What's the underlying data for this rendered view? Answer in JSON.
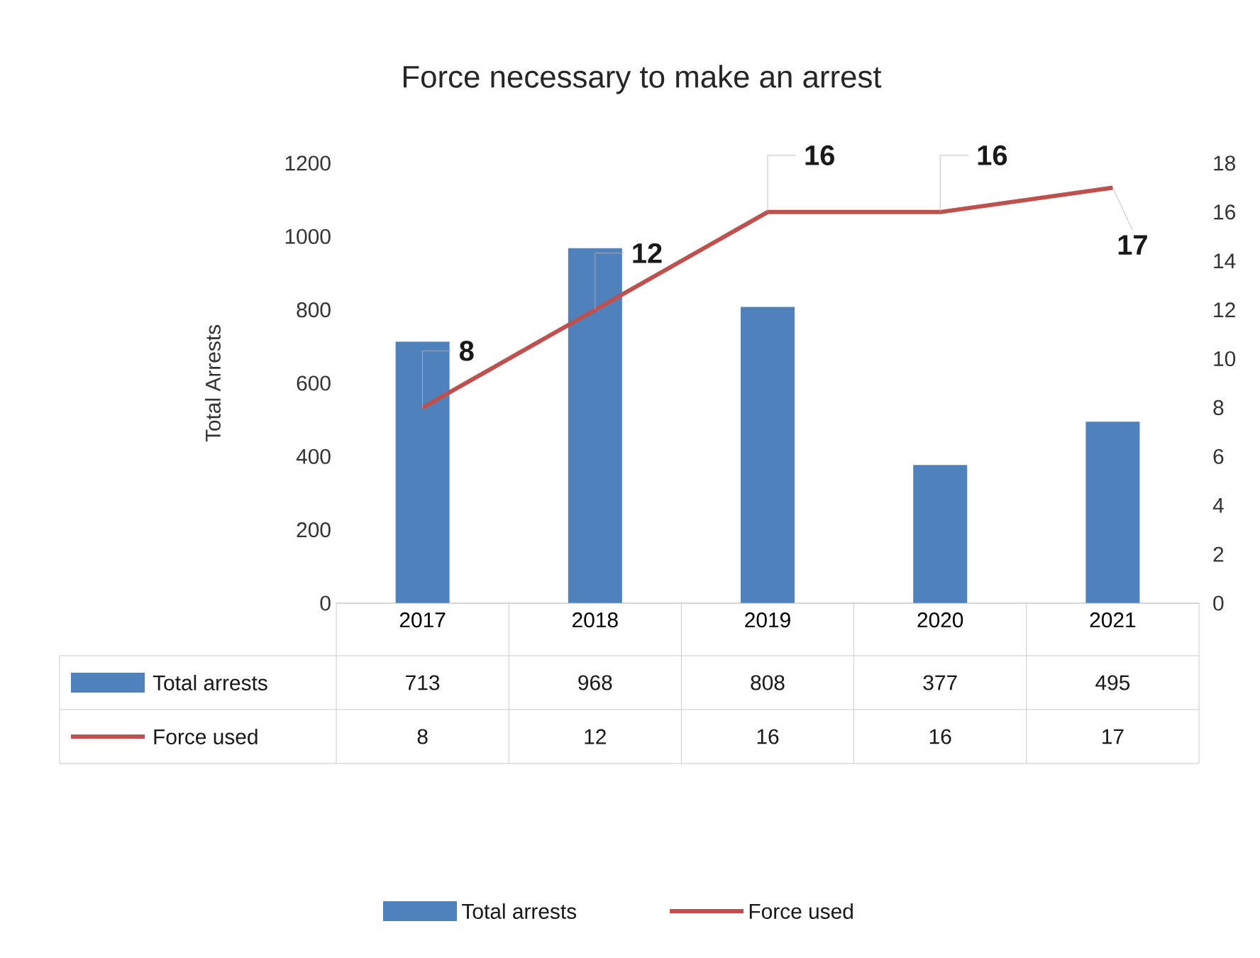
{
  "chart_data": {
    "type": "bar",
    "title": "Force necessary to make an arrest",
    "ylabel": "Total Arrests",
    "categories": [
      "2017",
      "2018",
      "2019",
      "2020",
      "2021"
    ],
    "series": [
      {
        "name": "Total arrests",
        "color": "#4f81bd",
        "values": [
          713,
          968,
          808,
          377,
          495
        ]
      },
      {
        "name": "Force used",
        "type": "line",
        "axis": "y2",
        "color": "#c0504d",
        "values": [
          8,
          12,
          16,
          16,
          17
        ],
        "value_labels": [
          "8",
          "12",
          "16",
          "16",
          "17"
        ]
      }
    ],
    "ylim": [
      0,
      1200
    ],
    "yticks": [
      0,
      200,
      400,
      600,
      800,
      1000,
      1200
    ],
    "y2lim": [
      0,
      18
    ],
    "y2ticks": [
      0,
      2,
      4,
      6,
      8,
      10,
      12,
      14,
      16,
      18
    ],
    "data_labels": true,
    "legend": "bottom",
    "marker": "none",
    "line_style": "solid"
  }
}
